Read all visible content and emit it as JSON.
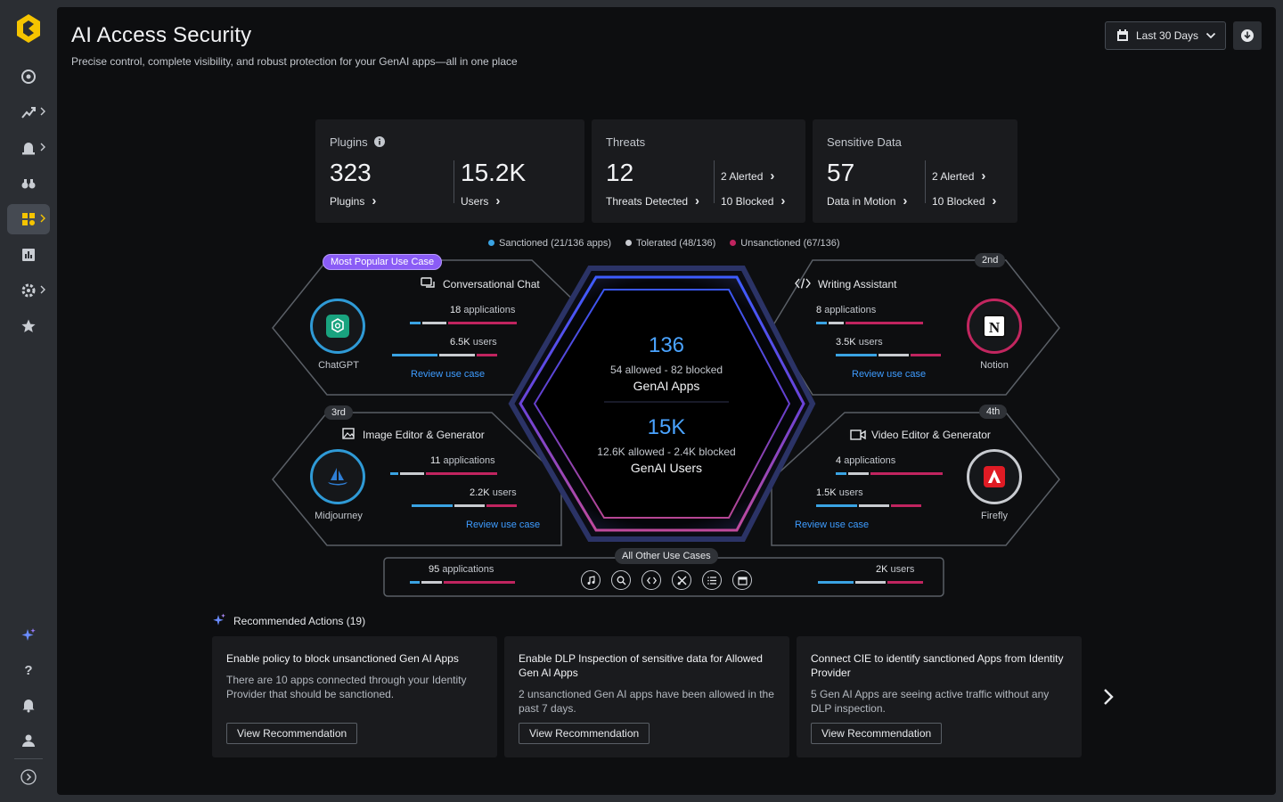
{
  "header": {
    "title": "AI Access Security",
    "subtitle": "Precise control, complete visibility, and robust protection for your GenAI apps—all in one place",
    "date_range": "Last 30 Days"
  },
  "plugins": {
    "title": "Plugins",
    "count": "323",
    "count_label": "Plugins",
    "users": "15.2K",
    "users_label": "Users"
  },
  "threats": {
    "title": "Threats",
    "count": "12",
    "count_label": "Threats Detected",
    "alerted": "2 Alerted",
    "blocked": "10 Blocked"
  },
  "sensitive": {
    "title": "Sensitive Data",
    "count": "57",
    "count_label": "Data in Motion",
    "alerted": "2 Alerted",
    "blocked": "10 Blocked"
  },
  "legend": {
    "sanctioned": "Sanctioned (21/136 apps)",
    "tolerated": "Tolerated (48/136)",
    "unsanctioned": "Unsanctioned (67/136)"
  },
  "colors": {
    "sanctioned": "#3aa3e3",
    "tolerated": "#c8cbd0",
    "unsanctioned": "#c0245f",
    "accent": "#4aa3ff"
  },
  "center": {
    "apps_num": "136",
    "apps_sub": "54 allowed - 82 blocked",
    "apps_label": "GenAI Apps",
    "users_num": "15K",
    "users_sub": "12.6K allowed - 2.4K blocked",
    "users_label": "GenAI Users"
  },
  "usecases": {
    "chat": {
      "badge": "Most Popular Use Case",
      "title": "Conversational Chat",
      "apps": "18",
      "apps_label": "applications",
      "users": "6.5K",
      "users_label": "users",
      "review": "Review use case",
      "app": "ChatGPT",
      "apps_mix": [
        0.1,
        0.23,
        0.67
      ],
      "users_mix": [
        0.45,
        0.35,
        0.2
      ]
    },
    "writing": {
      "badge": "2nd",
      "title": "Writing Assistant",
      "apps": "8",
      "apps_label": "applications",
      "users": "3.5K",
      "users_label": "users",
      "review": "Review use case",
      "app": "Notion",
      "apps_mix": [
        0.1,
        0.15,
        0.75
      ],
      "users_mix": [
        0.4,
        0.3,
        0.3
      ]
    },
    "image": {
      "badge": "3rd",
      "title": "Image Editor & Generator",
      "apps": "11",
      "apps_label": "applications",
      "users": "2.2K",
      "users_label": "users",
      "review": "Review use case",
      "app": "Midjourney",
      "apps_mix": [
        0.08,
        0.23,
        0.69
      ],
      "users_mix": [
        0.4,
        0.3,
        0.3
      ]
    },
    "video": {
      "badge": "4th",
      "title": "Video Editor & Generator",
      "apps": "4",
      "apps_label": "applications",
      "users": "1.5K",
      "users_label": "users",
      "review": "Review use case",
      "app": "Firefly",
      "apps_mix": [
        0.1,
        0.2,
        0.7
      ],
      "users_mix": [
        0.4,
        0.3,
        0.3
      ]
    },
    "other": {
      "title": "All Other Use Cases",
      "apps": "95",
      "apps_label": "applications",
      "users": "2K",
      "users_label": "users",
      "apps_mix": [
        0.1,
        0.2,
        0.7
      ],
      "users_mix": [
        0.35,
        0.3,
        0.35
      ]
    }
  },
  "recommended": {
    "title": "Recommended Actions (19)",
    "cards": [
      {
        "title": "Enable policy to block unsanctioned Gen AI Apps",
        "body": "There are 10 apps connected through your Identity Provider that should be sanctioned.",
        "button": "View Recommendation"
      },
      {
        "title": "Enable DLP Inspection of sensitive data for Allowed Gen AI Apps",
        "body": "2 unsanctioned Gen AI apps have been allowed in the past 7 days.",
        "button": "View Recommendation"
      },
      {
        "title": "Connect CIE to identify sanctioned Apps from Identity Provider",
        "body": "5 Gen AI Apps are seeing active traffic without any DLP inspection.",
        "button": "View Recommendation"
      }
    ]
  }
}
